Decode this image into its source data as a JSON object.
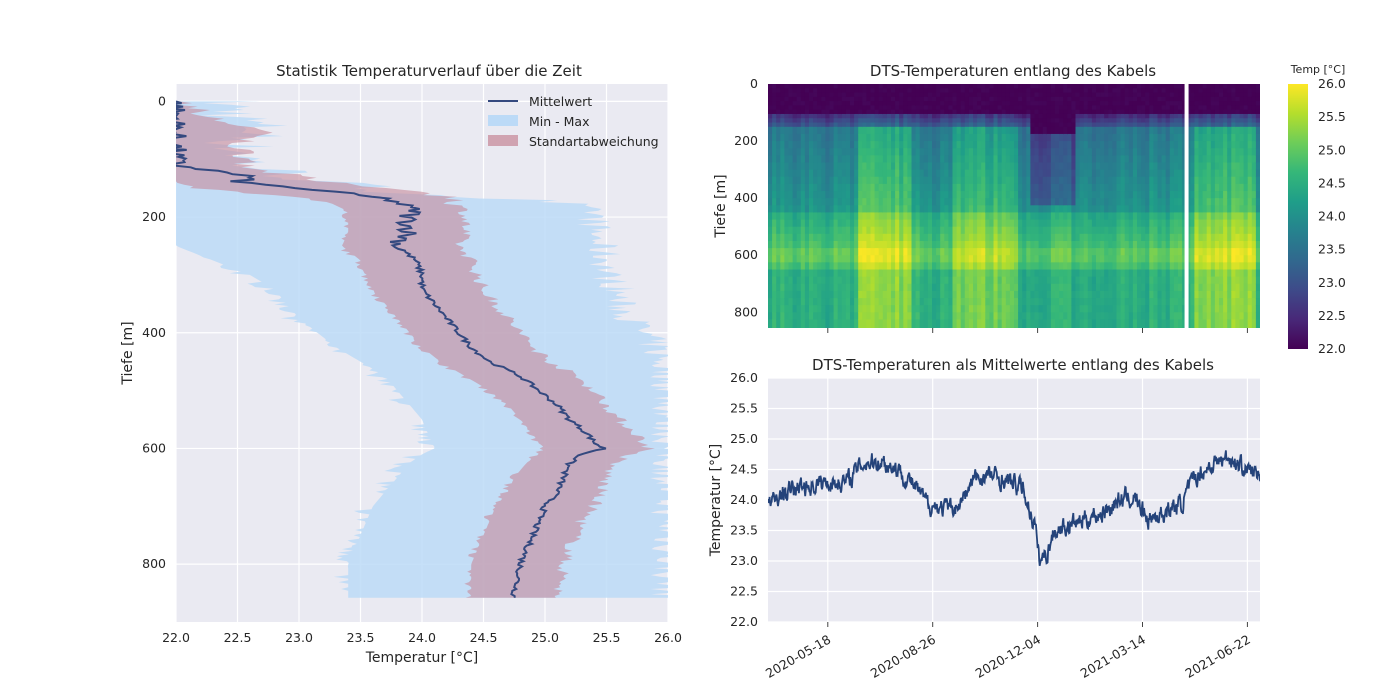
{
  "chart_data": [
    {
      "id": "left",
      "type": "area",
      "title": "Statistik Temperaturverlauf über die Zeit",
      "xlabel": "Temperatur [°C]",
      "ylabel": "Tiefe [m]",
      "xlim": [
        22.0,
        26.0
      ],
      "ylim": [
        900,
        -30
      ],
      "y_inverted": true,
      "grid": true,
      "xticks": [
        "22.0",
        "22.5",
        "23.0",
        "23.5",
        "24.0",
        "24.5",
        "25.0",
        "25.5",
        "26.0"
      ],
      "xtick_values": [
        22.0,
        22.5,
        23.0,
        23.5,
        24.0,
        24.5,
        25.0,
        25.5,
        26.0
      ],
      "yticks": [
        "0",
        "200",
        "400",
        "600",
        "800"
      ],
      "ytick_values": [
        0,
        200,
        400,
        600,
        800
      ],
      "legend_position": "top-right",
      "depth": [
        0,
        25,
        50,
        75,
        100,
        110,
        120,
        130,
        140,
        150,
        160,
        170,
        180,
        190,
        200,
        225,
        250,
        275,
        300,
        325,
        350,
        375,
        400,
        425,
        450,
        475,
        500,
        525,
        550,
        575,
        590,
        600,
        610,
        625,
        650,
        675,
        700,
        725,
        750,
        775,
        800,
        825,
        850,
        860
      ],
      "series": [
        {
          "name": "Mittelwert",
          "role": "line",
          "color": "#34497f",
          "values": [
            22.0,
            22.0,
            22.0,
            22.0,
            22.0,
            22.0,
            22.3,
            22.6,
            22.5,
            23.0,
            23.4,
            23.75,
            23.85,
            23.95,
            23.88,
            23.9,
            23.8,
            23.95,
            24.0,
            24.0,
            24.1,
            24.2,
            24.3,
            24.4,
            24.55,
            24.8,
            24.95,
            25.1,
            25.2,
            25.35,
            25.4,
            25.48,
            25.3,
            25.2,
            25.15,
            25.1,
            25.0,
            24.95,
            24.9,
            24.85,
            24.8,
            24.78,
            24.75,
            24.75
          ]
        },
        {
          "name": "Min - Max",
          "role": "band",
          "color": "#bcdaf7",
          "lower": [
            22.0,
            22.0,
            22.0,
            22.0,
            22.0,
            22.0,
            22.0,
            22.0,
            22.0,
            22.0,
            22.0,
            22.0,
            22.0,
            22.0,
            22.0,
            22.0,
            22.0,
            22.3,
            22.6,
            22.8,
            22.9,
            23.0,
            23.15,
            23.3,
            23.5,
            23.7,
            23.8,
            23.9,
            24.0,
            24.05,
            24.1,
            24.1,
            24.0,
            23.9,
            23.8,
            23.7,
            23.6,
            23.55,
            23.5,
            23.45,
            23.4,
            23.4,
            23.4,
            23.4
          ],
          "upper": [
            22.4,
            22.5,
            22.7,
            22.5,
            22.6,
            22.6,
            22.8,
            23.0,
            23.2,
            23.6,
            24.0,
            24.8,
            25.2,
            25.4,
            25.4,
            25.4,
            25.45,
            25.5,
            25.5,
            25.6,
            25.6,
            25.7,
            25.8,
            25.9,
            25.95,
            26.0,
            26.0,
            26.0,
            26.0,
            26.0,
            26.0,
            26.0,
            26.0,
            26.0,
            26.0,
            26.0,
            26.0,
            26.0,
            26.0,
            26.0,
            26.0,
            26.0,
            26.0,
            26.0
          ]
        },
        {
          "name": "Standartabweichung",
          "role": "band",
          "color": "#c78b9b",
          "lower": [
            22.0,
            22.0,
            22.0,
            22.0,
            22.0,
            22.0,
            22.0,
            22.0,
            22.0,
            22.2,
            22.7,
            23.2,
            23.3,
            23.4,
            23.4,
            23.4,
            23.35,
            23.5,
            23.55,
            23.6,
            23.7,
            23.8,
            23.9,
            24.0,
            24.15,
            24.35,
            24.55,
            24.7,
            24.8,
            24.9,
            24.95,
            25.0,
            24.95,
            24.85,
            24.75,
            24.7,
            24.6,
            24.55,
            24.5,
            24.45,
            24.4,
            24.4,
            24.4,
            24.4
          ],
          "upper": [
            22.1,
            22.2,
            22.7,
            22.5,
            22.6,
            22.6,
            22.7,
            23.0,
            23.2,
            23.8,
            24.1,
            24.3,
            24.3,
            24.35,
            24.35,
            24.35,
            24.3,
            24.4,
            24.45,
            24.5,
            24.6,
            24.7,
            24.8,
            24.9,
            25.05,
            25.25,
            25.4,
            25.5,
            25.6,
            25.75,
            25.8,
            25.85,
            25.7,
            25.55,
            25.5,
            25.45,
            25.4,
            25.3,
            25.25,
            25.2,
            25.15,
            25.15,
            25.1,
            25.1
          ]
        }
      ]
    },
    {
      "id": "heatmap",
      "type": "heatmap",
      "title": "DTS-Temperaturen entlang des Kabels",
      "xlabel": "",
      "ylabel": "Tiefe [m]",
      "yticks": [
        "0",
        "200",
        "400",
        "600",
        "800"
      ],
      "ytick_values": [
        0,
        200,
        400,
        600,
        800
      ],
      "ylim": [
        855,
        0
      ],
      "xlim": [
        "2020-03-22",
        "2021-07-04"
      ],
      "colormap": "viridis",
      "colorbar": {
        "title": "Temp [°C]",
        "range": [
          22.0,
          26.0
        ],
        "ticks": [
          "22.0",
          "22.5",
          "23.0",
          "23.5",
          "24.0",
          "24.5",
          "25.0",
          "25.5",
          "26.0"
        ],
        "tick_values": [
          22.0,
          22.5,
          23.0,
          23.5,
          24.0,
          24.5,
          25.0,
          25.5,
          26.0
        ]
      },
      "gap_date": "2021-04-25",
      "warm_periods": [
        {
          "from": "2020-06-15",
          "to": "2020-08-04",
          "offset": 0.8
        },
        {
          "from": "2020-09-15",
          "to": "2020-11-17",
          "offset": 0.6
        },
        {
          "from": "2021-05-01",
          "to": "2021-06-30",
          "offset": 0.8
        }
      ]
    },
    {
      "id": "mean",
      "type": "line",
      "title": "DTS-Temperaturen als Mittelwerte entlang des Kabels",
      "xlabel": "",
      "ylabel": "Temperatur [°C]",
      "ylim": [
        22.0,
        26.0
      ],
      "xlim": [
        "2020-03-22",
        "2021-07-04"
      ],
      "grid": true,
      "yticks": [
        "22.0",
        "22.5",
        "23.0",
        "23.5",
        "24.0",
        "24.5",
        "25.0",
        "25.5",
        "26.0"
      ],
      "ytick_values": [
        22.0,
        22.5,
        23.0,
        23.5,
        24.0,
        24.5,
        25.0,
        25.5,
        26.0
      ],
      "xticks": [
        "2020-05-18",
        "2020-08-26",
        "2020-12-04",
        "2021-03-14",
        "2021-06-22"
      ],
      "series": [
        {
          "name": "",
          "color": "#24437a",
          "x": [
            "2020-03-22",
            "2020-04-05",
            "2020-04-20",
            "2020-05-05",
            "2020-05-20",
            "2020-06-05",
            "2020-06-20",
            "2020-07-05",
            "2020-07-20",
            "2020-08-05",
            "2020-08-20",
            "2020-09-05",
            "2020-09-20",
            "2020-10-05",
            "2020-10-20",
            "2020-11-05",
            "2020-11-20",
            "2020-12-01",
            "2020-12-06",
            "2020-12-12",
            "2020-12-20",
            "2021-01-05",
            "2021-01-20",
            "2021-02-05",
            "2021-02-20",
            "2021-03-05",
            "2021-03-20",
            "2021-04-05",
            "2021-04-20",
            "2021-05-05",
            "2021-05-20",
            "2021-06-05",
            "2021-06-20",
            "2021-07-04"
          ],
          "values": [
            23.9,
            24.1,
            24.2,
            24.25,
            24.3,
            24.3,
            24.6,
            24.65,
            24.55,
            24.3,
            23.95,
            23.85,
            23.9,
            24.35,
            24.4,
            24.3,
            24.2,
            23.6,
            23.0,
            23.1,
            23.5,
            23.6,
            23.7,
            23.8,
            24.0,
            24.05,
            23.7,
            23.8,
            23.95,
            24.4,
            24.6,
            24.7,
            24.5,
            24.4
          ],
          "noise_amplitude": 0.2
        }
      ]
    }
  ]
}
